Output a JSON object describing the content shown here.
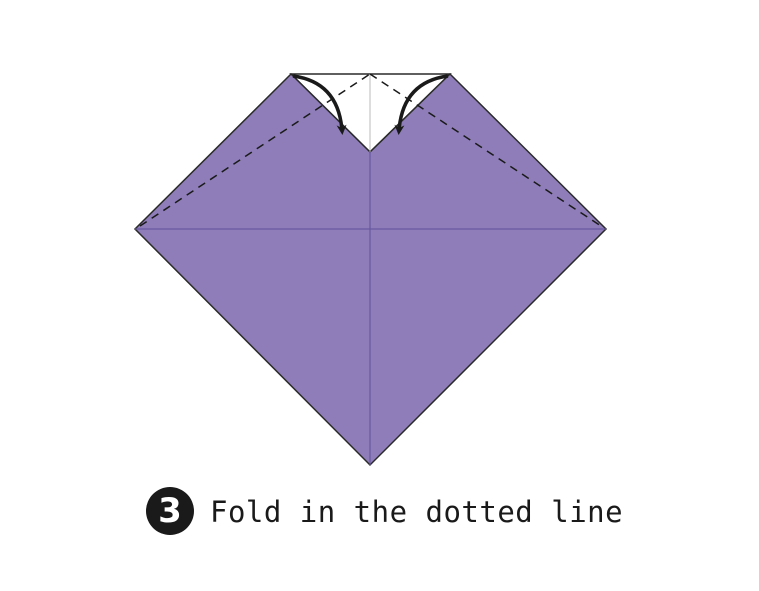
{
  "step": {
    "number": "3",
    "instruction": "Fold in the dotted line"
  },
  "colors": {
    "paper": "#8e7db8",
    "crease": "#6a58a0",
    "outline": "#2a2a2a",
    "flap_back": "#ffffff",
    "arrow": "#1a1a1a",
    "badge": "#1a1a1a"
  },
  "icons": {
    "left_fold_arrow": "curved-arrow-down-right",
    "right_fold_arrow": "curved-arrow-down-left"
  }
}
